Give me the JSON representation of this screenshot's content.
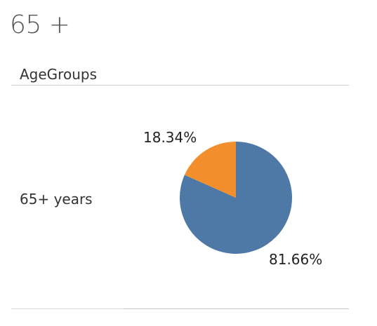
{
  "title": "65 +",
  "column_header": "AgeGroups",
  "row_label": "65+ years",
  "chart_data": {
    "type": "pie",
    "categories": [
      "65+ years"
    ],
    "slices": [
      {
        "value": 81.66,
        "label": "81.66%",
        "color": "#4e79a7"
      },
      {
        "value": 18.34,
        "label": "18.34%",
        "color": "#f28e2b"
      }
    ]
  }
}
